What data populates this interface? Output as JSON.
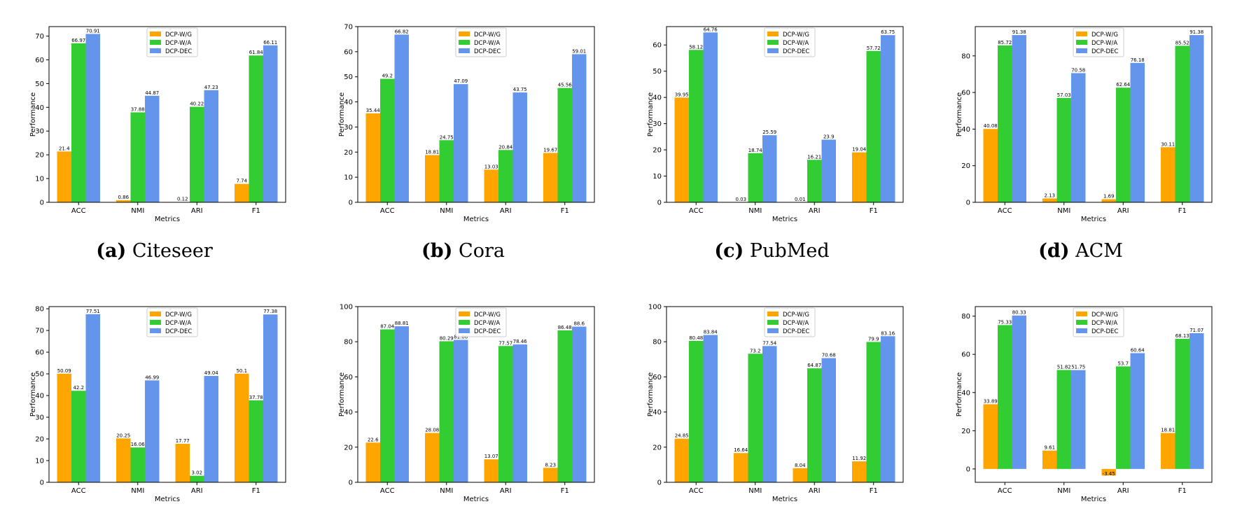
{
  "colors": {
    "wg": "#FFA500",
    "wa": "#32CD32",
    "dec": "#6495ED"
  },
  "charts": [
    {
      "id": "a",
      "label": "(a)",
      "title": "Citeseer",
      "ymax": 74,
      "ticks": [
        0,
        10,
        20,
        30,
        40,
        50,
        60,
        70
      ],
      "wg": [
        21.4,
        0.86,
        0.12,
        7.74
      ],
      "wa": [
        66.97,
        37.88,
        40.22,
        61.84
      ],
      "dec": [
        70.91,
        44.87,
        47.23,
        66.11
      ],
      "wg_labels": [
        "21.4",
        "0.86",
        "0.12",
        "7.74"
      ],
      "wa_labels": [
        "66.97",
        "37.88",
        "40.22",
        "61.84"
      ],
      "dec_labels": [
        "70.91",
        "44.87",
        "47.23",
        "66.11"
      ]
    },
    {
      "id": "b",
      "label": "(b)",
      "title": "Cora",
      "ymax": 70,
      "ticks": [
        0,
        10,
        20,
        30,
        40,
        50,
        60,
        70
      ],
      "wg": [
        35.44,
        18.81,
        13.03,
        19.67
      ],
      "wa": [
        49.2,
        24.75,
        20.84,
        45.56
      ],
      "dec": [
        66.82,
        47.09,
        43.75,
        59.01
      ],
      "wg_labels": [
        "35.44",
        "18.81",
        "13.03",
        "19.67"
      ],
      "wa_labels": [
        "49.2",
        "24.75",
        "20.84",
        "45.56"
      ],
      "dec_labels": [
        "66.82",
        "47.09",
        "43.75",
        "59.01"
      ]
    },
    {
      "id": "c",
      "label": "(c)",
      "title": "PubMed",
      "ymax": 67,
      "ticks": [
        0,
        10,
        20,
        30,
        40,
        50,
        60
      ],
      "wg": [
        39.95,
        0.03,
        0.01,
        19.04
      ],
      "wa": [
        58.12,
        18.74,
        16.21,
        57.72
      ],
      "dec": [
        64.76,
        25.59,
        23.9,
        63.75
      ],
      "wg_labels": [
        "39.95",
        "0.03",
        "0.01",
        "19.04"
      ],
      "wa_labels": [
        "58.12",
        "18.74",
        "16.21",
        "57.72"
      ],
      "dec_labels": [
        "64.76",
        "25.59",
        "23.9",
        "63.75"
      ]
    },
    {
      "id": "d",
      "label": "(d)",
      "title": "ACM",
      "ymax": 96,
      "ticks": [
        0,
        20,
        40,
        60,
        80
      ],
      "wg": [
        40.08,
        2.13,
        1.69,
        30.11
      ],
      "wa": [
        85.72,
        57.03,
        62.64,
        85.52
      ],
      "dec": [
        91.38,
        70.58,
        76.18,
        91.38
      ],
      "wg_labels": [
        "40.08",
        "2.13",
        "1.69",
        "30.11"
      ],
      "wa_labels": [
        "85.72",
        "57.03",
        "62.64",
        "85.52"
      ],
      "dec_labels": [
        "91.38",
        "70.58",
        "76.18",
        "91.38"
      ]
    },
    {
      "id": "e",
      "label": "",
      "title": "",
      "ymax": 81,
      "ticks": [
        0,
        10,
        20,
        30,
        40,
        50,
        60,
        70,
        80
      ],
      "wg": [
        50.09,
        20.25,
        17.77,
        50.1
      ],
      "wa": [
        42.2,
        16.06,
        3.02,
        37.78
      ],
      "dec": [
        77.51,
        46.99,
        49.04,
        77.38
      ],
      "wg_labels": [
        "50.09",
        "20.25",
        "17.77",
        "50.1"
      ],
      "wa_labels": [
        "42.2",
        "16.06",
        "3.02",
        "37.78"
      ],
      "dec_labels": [
        "77.51",
        "46.99",
        "49.04",
        "77.38"
      ]
    },
    {
      "id": "f",
      "label": "",
      "title": "",
      "ymax": 100,
      "ticks": [
        0,
        20,
        40,
        60,
        80,
        100
      ],
      "wg": [
        22.6,
        28.08,
        13.07,
        8.23
      ],
      "wa": [
        87.04,
        80.29,
        77.57,
        86.48
      ],
      "dec": [
        88.81,
        81.06,
        78.46,
        88.6
      ],
      "wg_labels": [
        "22.6",
        "28.08",
        "13.07",
        "8.23"
      ],
      "wa_labels": [
        "87.04",
        "80.29",
        "77.57",
        "86.48"
      ],
      "dec_labels": [
        "88.81",
        "81.06",
        "78.46",
        "88.6"
      ]
    },
    {
      "id": "g",
      "label": "",
      "title": "",
      "ymax": 100,
      "ticks": [
        0,
        20,
        40,
        60,
        80,
        100
      ],
      "wg": [
        24.85,
        16.64,
        8.04,
        11.92
      ],
      "wa": [
        80.48,
        73.2,
        64.87,
        79.9
      ],
      "dec": [
        83.84,
        77.54,
        70.68,
        83.16
      ],
      "wg_labels": [
        "24.85",
        "16.64",
        "8.04",
        "11.92"
      ],
      "wa_labels": [
        "80.48",
        "73.2",
        "64.87",
        "79.9"
      ],
      "dec_labels": [
        "83.84",
        "77.54",
        "70.68",
        "83.16"
      ]
    },
    {
      "id": "h",
      "label": "",
      "title": "",
      "ymin": -7,
      "ymax": 85,
      "ticks": [
        0,
        20,
        40,
        60,
        80
      ],
      "wg": [
        33.89,
        9.61,
        -3.45,
        18.81
      ],
      "wa": [
        75.33,
        51.82,
        53.7,
        68.13
      ],
      "dec": [
        80.33,
        51.75,
        60.64,
        71.07
      ],
      "wg_labels": [
        "33.89",
        "9.61",
        "-3.45",
        "18.81"
      ],
      "wa_labels": [
        "75.33",
        "51.82",
        "53.7",
        "68.13"
      ],
      "dec_labels": [
        "80.33",
        "51.75",
        "60.64",
        "71.07"
      ]
    }
  ],
  "chart_data": [
    {
      "type": "bar",
      "title": "Citeseer",
      "categories": [
        "ACC",
        "NMI",
        "ARI",
        "F1"
      ],
      "xlabel": "Metrics",
      "ylabel": "Performance",
      "ylim": [
        0,
        74
      ],
      "series": [
        {
          "name": "DCP-W/G",
          "values": [
            21.4,
            0.86,
            0.12,
            7.74
          ]
        },
        {
          "name": "DCP-W/A",
          "values": [
            66.97,
            37.88,
            40.22,
            61.84
          ]
        },
        {
          "name": "DCP-DEC",
          "values": [
            70.91,
            44.87,
            47.23,
            66.11
          ]
        }
      ]
    },
    {
      "type": "bar",
      "title": "Cora",
      "categories": [
        "ACC",
        "NMI",
        "ARI",
        "F1"
      ],
      "xlabel": "Metrics",
      "ylabel": "Performance",
      "ylim": [
        0,
        70
      ],
      "series": [
        {
          "name": "DCP-W/G",
          "values": [
            35.44,
            18.81,
            13.03,
            19.67
          ]
        },
        {
          "name": "DCP-W/A",
          "values": [
            49.2,
            24.75,
            20.84,
            45.56
          ]
        },
        {
          "name": "DCP-DEC",
          "values": [
            66.82,
            47.09,
            43.75,
            59.01
          ]
        }
      ]
    },
    {
      "type": "bar",
      "title": "PubMed",
      "categories": [
        "ACC",
        "NMI",
        "ARI",
        "F1"
      ],
      "xlabel": "Metrics",
      "ylabel": "Performance",
      "ylim": [
        0,
        67
      ],
      "series": [
        {
          "name": "DCP-W/G",
          "values": [
            39.95,
            0.03,
            0.01,
            19.04
          ]
        },
        {
          "name": "DCP-W/A",
          "values": [
            58.12,
            18.74,
            16.21,
            57.72
          ]
        },
        {
          "name": "DCP-DEC",
          "values": [
            64.76,
            25.59,
            23.9,
            63.75
          ]
        }
      ]
    },
    {
      "type": "bar",
      "title": "ACM",
      "categories": [
        "ACC",
        "NMI",
        "ARI",
        "F1"
      ],
      "xlabel": "Metrics",
      "ylabel": "Performance",
      "ylim": [
        0,
        96
      ],
      "series": [
        {
          "name": "DCP-W/G",
          "values": [
            40.08,
            2.13,
            1.69,
            30.11
          ]
        },
        {
          "name": "DCP-W/A",
          "values": [
            85.72,
            57.03,
            62.64,
            85.52
          ]
        },
        {
          "name": "DCP-DEC",
          "values": [
            91.38,
            70.58,
            76.18,
            91.38
          ]
        }
      ]
    },
    {
      "type": "bar",
      "title": "",
      "categories": [
        "ACC",
        "NMI",
        "ARI",
        "F1"
      ],
      "xlabel": "Metrics",
      "ylabel": "Performance",
      "ylim": [
        0,
        81
      ],
      "series": [
        {
          "name": "DCP-W/G",
          "values": [
            50.09,
            20.25,
            17.77,
            50.1
          ]
        },
        {
          "name": "DCP-W/A",
          "values": [
            42.2,
            16.06,
            3.02,
            37.78
          ]
        },
        {
          "name": "DCP-DEC",
          "values": [
            77.51,
            46.99,
            49.04,
            77.38
          ]
        }
      ]
    },
    {
      "type": "bar",
      "title": "",
      "categories": [
        "ACC",
        "NMI",
        "ARI",
        "F1"
      ],
      "xlabel": "Metrics",
      "ylabel": "Performance",
      "ylim": [
        0,
        100
      ],
      "series": [
        {
          "name": "DCP-W/G",
          "values": [
            22.6,
            28.08,
            13.07,
            8.23
          ]
        },
        {
          "name": "DCP-W/A",
          "values": [
            87.04,
            80.29,
            77.57,
            86.48
          ]
        },
        {
          "name": "DCP-DEC",
          "values": [
            88.81,
            81.06,
            78.46,
            88.6
          ]
        }
      ]
    },
    {
      "type": "bar",
      "title": "",
      "categories": [
        "ACC",
        "NMI",
        "ARI",
        "F1"
      ],
      "xlabel": "Metrics",
      "ylabel": "Performance",
      "ylim": [
        0,
        100
      ],
      "series": [
        {
          "name": "DCP-W/G",
          "values": [
            24.85,
            16.64,
            8.04,
            11.92
          ]
        },
        {
          "name": "DCP-W/A",
          "values": [
            80.48,
            73.2,
            64.87,
            79.9
          ]
        },
        {
          "name": "DCP-DEC",
          "values": [
            83.84,
            77.54,
            70.68,
            83.16
          ]
        }
      ]
    },
    {
      "type": "bar",
      "title": "",
      "categories": [
        "ACC",
        "NMI",
        "ARI",
        "F1"
      ],
      "xlabel": "Metrics",
      "ylabel": "Performance",
      "ylim": [
        -7,
        85
      ],
      "series": [
        {
          "name": "DCP-W/G",
          "values": [
            33.89,
            9.61,
            -3.45,
            18.81
          ]
        },
        {
          "name": "DCP-W/A",
          "values": [
            75.33,
            51.82,
            53.7,
            68.13
          ]
        },
        {
          "name": "DCP-DEC",
          "values": [
            80.33,
            51.75,
            60.64,
            71.07
          ]
        }
      ]
    }
  ],
  "common": {
    "categories": [
      "ACC",
      "NMI",
      "ARI",
      "F1"
    ],
    "xlabel": "Metrics",
    "ylabel": "Performance",
    "legend": [
      "DCP-W/G",
      "DCP-W/A",
      "DCP-DEC"
    ]
  }
}
